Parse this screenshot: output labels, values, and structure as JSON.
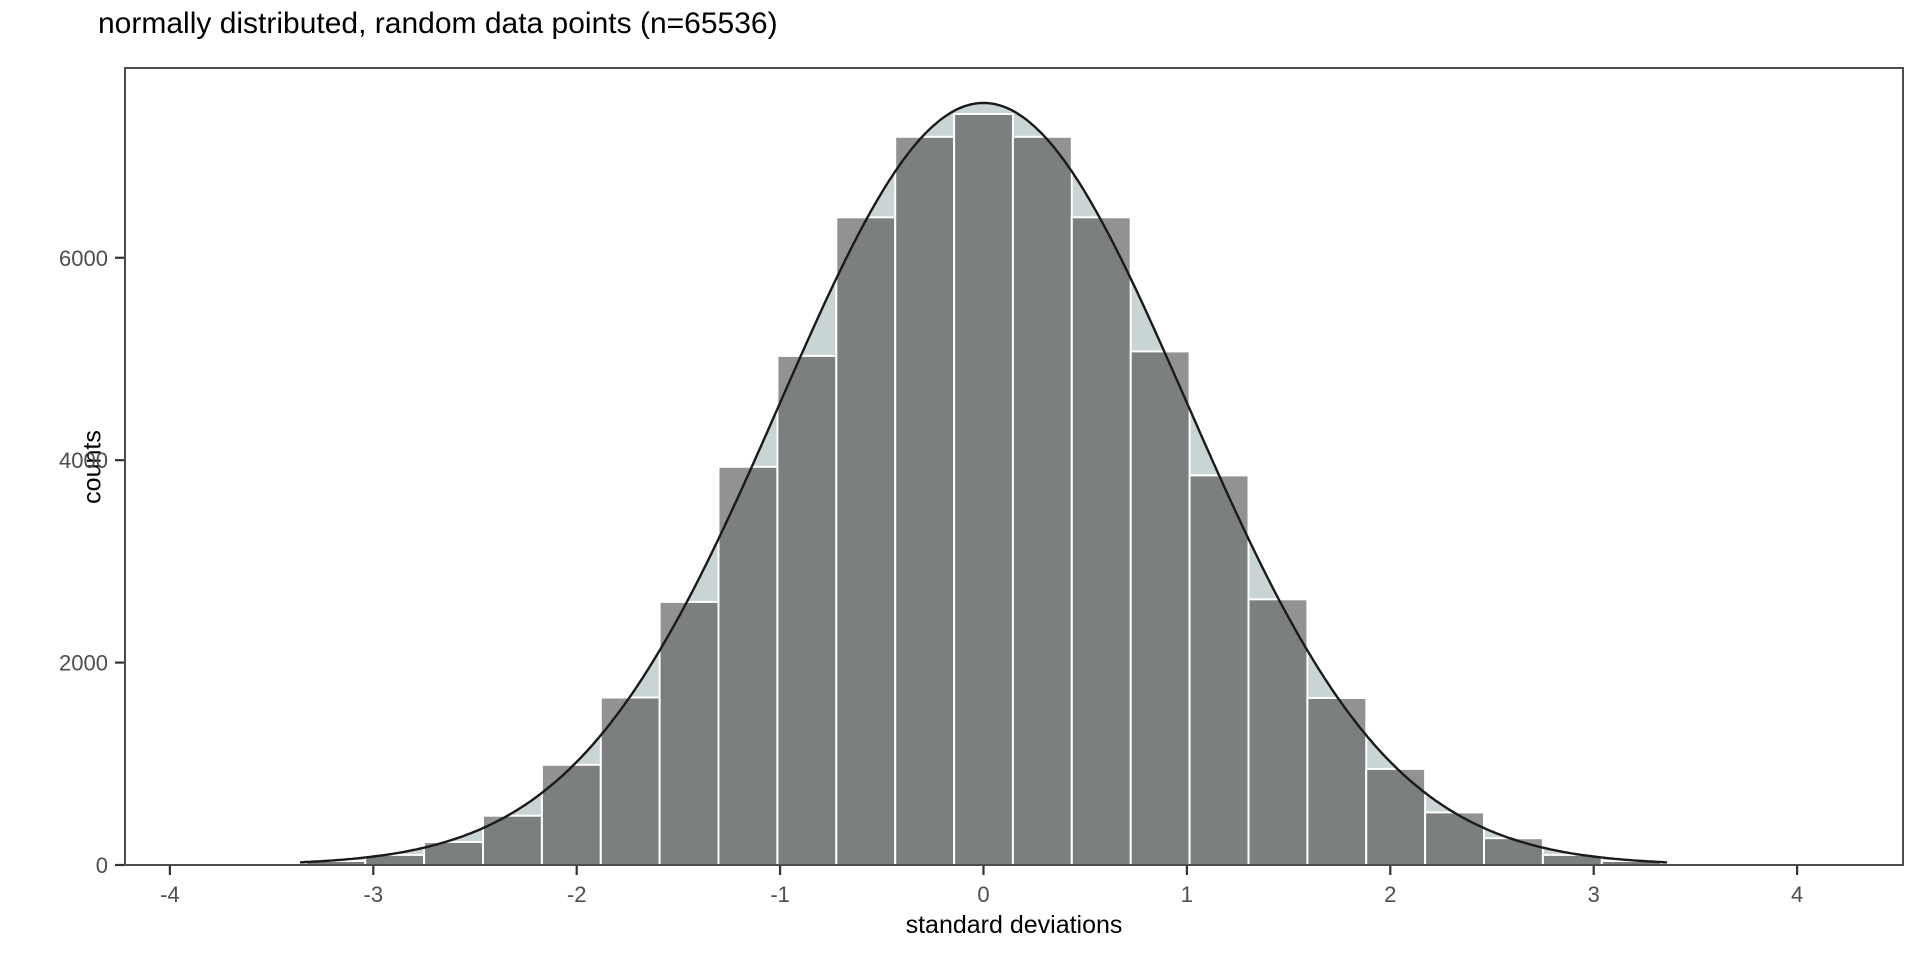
{
  "chart_data": {
    "type": "histogram",
    "title": "normally distributed, random data points (n=65536)",
    "xlabel": "standard deviations",
    "ylabel": "counts",
    "n": 65536,
    "x_ticks": [
      -4,
      -3,
      -2,
      -1,
      0,
      1,
      2,
      3,
      4
    ],
    "y_ticks": [
      0,
      2000,
      4000,
      6000
    ],
    "xlim": [
      -4.22,
      4.52
    ],
    "ylim": [
      0,
      7875
    ],
    "grid": "none",
    "legend": "none",
    "bin_width": 0.2895,
    "bin_centers": [
      -3.1845,
      -2.895,
      -2.6055,
      -2.316,
      -2.0265,
      -1.737,
      -1.4475,
      -1.158,
      -0.8685,
      -0.579,
      -0.2895,
      0,
      0.2895,
      0.579,
      0.8685,
      1.158,
      1.4475,
      1.737,
      2.0265,
      2.316,
      2.6055,
      2.895,
      3.1845
    ],
    "counts": [
      40,
      100,
      227,
      487,
      990,
      1655,
      2600,
      3935,
      5030,
      6400,
      7195,
      7420,
      7195,
      6400,
      5075,
      3850,
      2625,
      1650,
      950,
      520,
      265,
      100,
      40
    ],
    "curve": {
      "shape": "gaussian",
      "peak": 7530,
      "mean": 0,
      "sd": 1,
      "range": [
        -3.36,
        3.36
      ]
    },
    "colors": {
      "background": "#ffffff",
      "bar_fill": "#3f3f3f",
      "bar_alpha": 0.57,
      "bar_border": "#ffffff",
      "area_fill": "#c9d4d4",
      "curve_line": "#1a1a1a",
      "panel_border": "#4d4d4d",
      "tick_mark": "#333333",
      "tick_label": "#4d4d4d",
      "title_color": "#000000"
    }
  }
}
